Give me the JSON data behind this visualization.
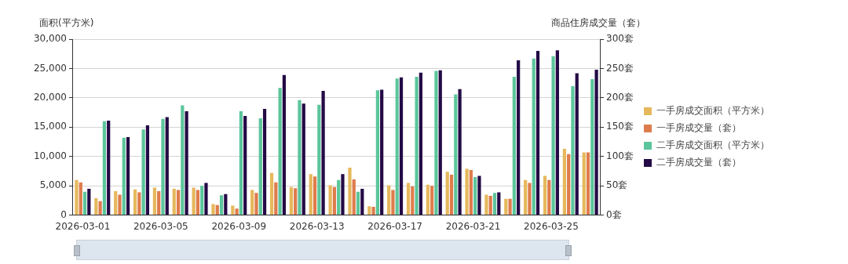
{
  "chart_data": {
    "type": "bar",
    "ylabel": "面积(平方米)",
    "y2label": "商品住房成交量（套）",
    "categories": [
      "2026-03-01",
      null,
      null,
      null,
      "2026-03-05",
      null,
      null,
      null,
      "2026-03-09",
      null,
      null,
      null,
      "2026-03-13",
      null,
      null,
      null,
      "2026-03-17",
      null,
      null,
      null,
      "2026-03-21",
      null,
      null,
      null,
      "2026-03-25",
      null,
      null
    ],
    "series": [
      {
        "name": "一手房成交面积（平方米）",
        "color": "#e6b85c",
        "values": [
          6000,
          2900,
          4100,
          4400,
          4700,
          4500,
          4700,
          1900,
          1600,
          4300,
          7200,
          4800,
          7000,
          5100,
          8100,
          1500,
          5100,
          5500,
          5200,
          7400,
          7900,
          3500,
          2800,
          6000,
          6700,
          11300,
          10700
        ]
      },
      {
        "name": "一手房成交量（套）",
        "color": "#de7c4c",
        "axis": "y2",
        "values": [
          56,
          24,
          35,
          39,
          41,
          43,
          43,
          17,
          11,
          38,
          56,
          46,
          66,
          48,
          61,
          14,
          43,
          49,
          50,
          69,
          77,
          33,
          28,
          55,
          60,
          104,
          107
        ]
      },
      {
        "name": "二手房成交面积（平方米）",
        "color": "#5cc59b",
        "values": [
          4000,
          16000,
          13200,
          14600,
          16400,
          18700,
          5000,
          3400,
          17700,
          16500,
          21700,
          19600,
          18800,
          6000,
          4000,
          21300,
          23300,
          23600,
          24600,
          20600,
          6500,
          3800,
          23600,
          26700,
          27100,
          22000,
          23200
        ]
      },
      {
        "name": "二手房成交量（套）",
        "color": "#240a46",
        "axis": "y2",
        "values": [
          45,
          161,
          133,
          153,
          167,
          177,
          55,
          36,
          169,
          181,
          239,
          190,
          212,
          70,
          45,
          214,
          235,
          243,
          247,
          215,
          67,
          39,
          264,
          280,
          281,
          242,
          248
        ]
      }
    ],
    "ylim": [
      0,
      30000
    ],
    "yticks": [
      {
        "value": 0,
        "label": "0"
      },
      {
        "value": 5000,
        "label": "5,000"
      },
      {
        "value": 10000,
        "label": "10,000"
      },
      {
        "value": 15000,
        "label": "15,000"
      },
      {
        "value": 20000,
        "label": "20,000"
      },
      {
        "value": 25000,
        "label": "25,000"
      },
      {
        "value": 30000,
        "label": "30,000"
      }
    ],
    "y2lim": [
      0,
      300
    ],
    "y2ticks": [
      {
        "value": 0,
        "label": "0套"
      },
      {
        "value": 50,
        "label": "50套"
      },
      {
        "value": 100,
        "label": "100套"
      },
      {
        "value": 150,
        "label": "150套"
      },
      {
        "value": 200,
        "label": "200套"
      },
      {
        "value": 250,
        "label": "250套"
      },
      {
        "value": 300,
        "label": "300套"
      }
    ],
    "grid": "y",
    "legend": "right"
  }
}
